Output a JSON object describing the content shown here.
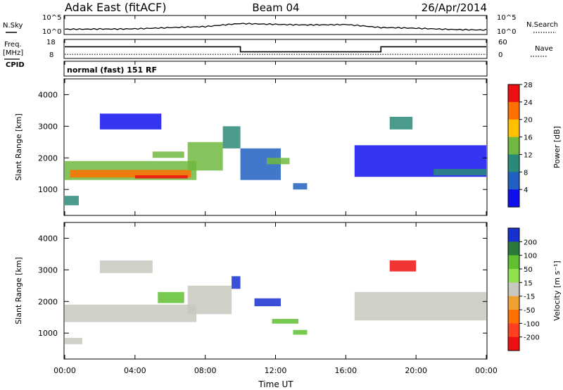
{
  "header": {
    "station": "Adak East (fitACF)",
    "beam": "Beam 04",
    "date": "26/Apr/2014"
  },
  "side_labels": {
    "nsky": "N.Sky",
    "nsearch": "N.Search",
    "freq": "Freq.",
    "mhz": "[MHz]",
    "cpid": "CPID",
    "nave": "Nave"
  },
  "scan_mode": "normal (fast) 151 RF",
  "noise_axis": {
    "left_ticks": [
      "10^5",
      "10^0"
    ],
    "right_ticks": [
      "10^5",
      "10^0"
    ]
  },
  "freq_axis": {
    "left_ticks": [
      "18",
      "8"
    ],
    "right_ticks": [
      "60",
      "0"
    ]
  },
  "x_axis": {
    "label": "Time UT",
    "ticks": [
      "00:00",
      "04:00",
      "08:00",
      "12:00",
      "16:00",
      "20:00",
      "00:00"
    ]
  },
  "panels": {
    "power": {
      "ylabel": "Slant Range [km]",
      "cbar_label": "Power [dB]"
    },
    "velocity": {
      "ylabel": "Slant Range [km]",
      "cbar_label": "Velocity [m s⁻¹]"
    }
  },
  "chart_data": [
    {
      "type": "line",
      "name": "noise",
      "x_hours": [
        0,
        2,
        4,
        6,
        8,
        10,
        12,
        14,
        16,
        18,
        20,
        22,
        24
      ],
      "sky_level": [
        0.25,
        0.3,
        0.3,
        0.32,
        0.35,
        0.55,
        0.55,
        0.52,
        0.5,
        0.3,
        0.28,
        0.26,
        0.25
      ],
      "search_level": [
        0.1,
        0.1,
        0.1,
        0.1,
        0.1,
        0.1,
        0.1,
        0.1,
        0.1,
        0.1,
        0.1,
        0.1,
        0.1
      ]
    },
    {
      "type": "line",
      "name": "frequency",
      "xlim": [
        0,
        24
      ],
      "ylim": [
        8,
        18
      ],
      "freq_steps": [
        {
          "from": 0,
          "to": 10,
          "value": 14.5
        },
        {
          "from": 10,
          "to": 18,
          "value": 11.5
        },
        {
          "from": 18,
          "to": 24,
          "value": 14.5
        }
      ],
      "nave_level": 12
    },
    {
      "type": "heatmap",
      "name": "power",
      "xlim": [
        0,
        24
      ],
      "ylim": [
        180,
        4500
      ],
      "y_ticks": [
        1000,
        2000,
        3000,
        4000
      ],
      "colorbar": {
        "ticks": [
          "4",
          "8",
          "12",
          "16",
          "20",
          "24",
          "28"
        ],
        "colors": [
          "#1010ee",
          "#2060c0",
          "#2a8a7a",
          "#70b840",
          "#ffc000",
          "#ff7000",
          "#ee1010"
        ]
      },
      "regions": [
        {
          "t0": 0,
          "t1": 7.5,
          "r0": 1300,
          "r1": 1900,
          "level": 3
        },
        {
          "t0": 0.3,
          "t1": 7.2,
          "r0": 1380,
          "r1": 1620,
          "level": 5
        },
        {
          "t0": 4,
          "t1": 7,
          "r0": 1350,
          "r1": 1450,
          "level": 6
        },
        {
          "t0": 7,
          "t1": 9,
          "r0": 1600,
          "r1": 2500,
          "level": 3
        },
        {
          "t0": 9,
          "t1": 10,
          "r0": 2300,
          "r1": 3000,
          "level": 2
        },
        {
          "t0": 10,
          "t1": 12.3,
          "r0": 1300,
          "r1": 2300,
          "level": 1
        },
        {
          "t0": 11.5,
          "t1": 12.8,
          "r0": 1800,
          "r1": 2000,
          "level": 3
        },
        {
          "t0": 13,
          "t1": 13.8,
          "r0": 1000,
          "r1": 1200,
          "level": 1
        },
        {
          "t0": 5,
          "t1": 6.8,
          "r0": 2000,
          "r1": 2200,
          "level": 3
        },
        {
          "t0": 2,
          "t1": 5.5,
          "r0": 2900,
          "r1": 3400,
          "level": 0
        },
        {
          "t0": 16.5,
          "t1": 24,
          "r0": 1400,
          "r1": 2400,
          "level": 0
        },
        {
          "t0": 21,
          "t1": 24,
          "r0": 1450,
          "r1": 1650,
          "level": 2
        },
        {
          "t0": 18.5,
          "t1": 19.8,
          "r0": 2900,
          "r1": 3300,
          "level": 2
        },
        {
          "t0": 0,
          "t1": 0.8,
          "r0": 500,
          "r1": 800,
          "level": 2
        }
      ]
    },
    {
      "type": "heatmap",
      "name": "velocity",
      "xlim": [
        0,
        24
      ],
      "ylim": [
        180,
        4500
      ],
      "y_ticks": [
        1000,
        2000,
        3000,
        4000
      ],
      "colorbar": {
        "ticks": [
          "200",
          "100",
          "50",
          "15",
          "-15",
          "-50",
          "-100",
          "-200"
        ],
        "colors": [
          "#1830d0",
          "#2a7a3a",
          "#60c030",
          "#90e050",
          "#c8c8c0",
          "#f0a030",
          "#ff7000",
          "#ff4020",
          "#ee1010"
        ]
      },
      "regions": [
        {
          "t0": 0,
          "t1": 7.5,
          "r0": 1350,
          "r1": 1900,
          "level": 4
        },
        {
          "t0": 7,
          "t1": 9.5,
          "r0": 1600,
          "r1": 2500,
          "level": 4
        },
        {
          "t0": 5.3,
          "t1": 6.8,
          "r0": 1950,
          "r1": 2300,
          "level": 2
        },
        {
          "t0": 9.5,
          "t1": 10,
          "r0": 2400,
          "r1": 2800,
          "level": 0
        },
        {
          "t0": 10.8,
          "t1": 12.3,
          "r0": 1850,
          "r1": 2100,
          "level": 0
        },
        {
          "t0": 11.8,
          "t1": 13.3,
          "r0": 1300,
          "r1": 1450,
          "level": 2
        },
        {
          "t0": 13,
          "t1": 13.8,
          "r0": 950,
          "r1": 1100,
          "level": 2
        },
        {
          "t0": 18.5,
          "t1": 20,
          "r0": 2950,
          "r1": 3300,
          "level": 8
        },
        {
          "t0": 16.5,
          "t1": 24,
          "r0": 1400,
          "r1": 2300,
          "level": 4
        },
        {
          "t0": 2,
          "t1": 5,
          "r0": 2900,
          "r1": 3300,
          "level": 4
        },
        {
          "t0": 0,
          "t1": 1,
          "r0": 650,
          "r1": 850,
          "level": 4
        }
      ]
    }
  ]
}
